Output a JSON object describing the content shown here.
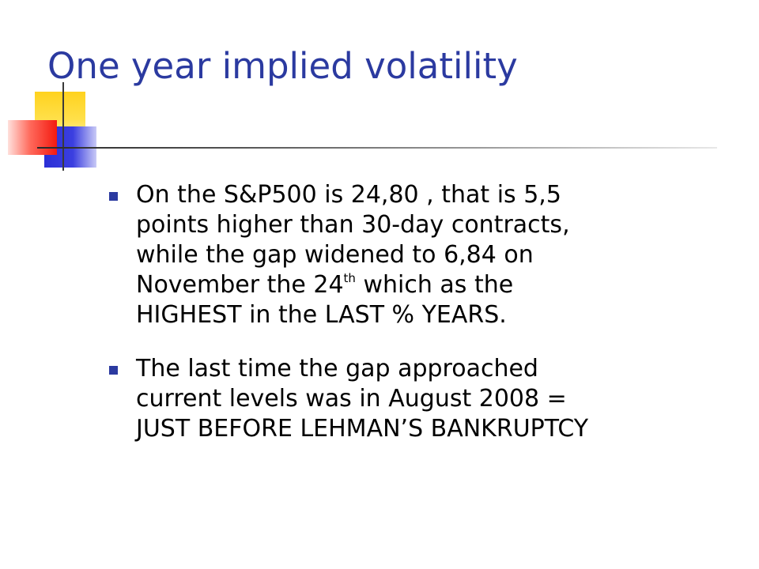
{
  "title": "One year implied volatility",
  "bullets": [
    {
      "line1": "On the S&P500 is 24,80 , that is 5,5",
      "line2": "points higher than 30-day contracts,",
      "line3": "while the gap widened to 6,84 on",
      "line4_before": "November the 24",
      "line4_sup": "th",
      "line4_after": " which as the",
      "line5": "HIGHEST in the LAST % YEARS."
    },
    {
      "line1": "The last time the gap approached",
      "line2": "current levels was in August 2008 =",
      "line3": "JUST BEFORE LEHMAN’S BANKRUPTCY"
    }
  ],
  "colors": {
    "title": "#2b3aa0",
    "bullet_marker": "#2b3aa0",
    "deco_yellow": "#ffd21e",
    "deco_blue": "#2b2fd6",
    "deco_red": "#f31a10"
  }
}
